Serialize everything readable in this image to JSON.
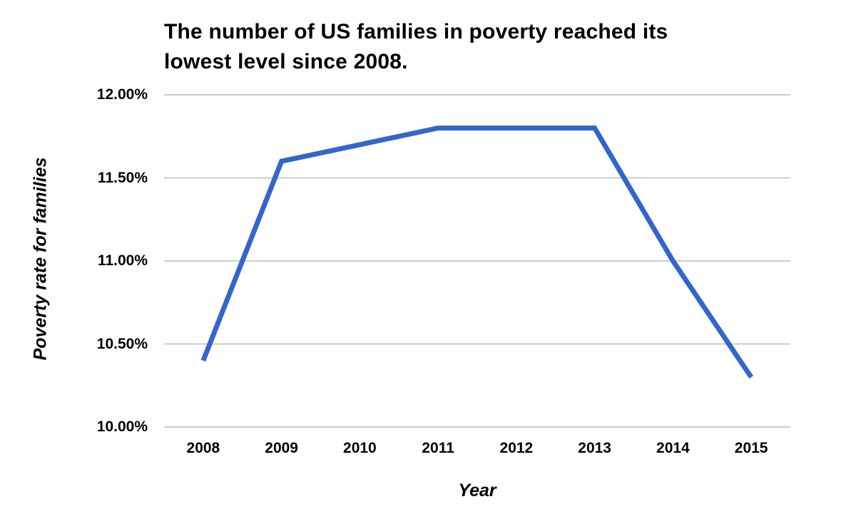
{
  "chart_data": {
    "type": "line",
    "title": "The number of US families in poverty reached its lowest level since 2008.",
    "title_lines": [
      "The number of US families in poverty reached its",
      "lowest level since 2008."
    ],
    "xlabel": "Year",
    "ylabel": "Poverty rate for families",
    "categories": [
      "2008",
      "2009",
      "2010",
      "2011",
      "2012",
      "2013",
      "2014",
      "2015"
    ],
    "series": [
      {
        "name": "Poverty rate for families",
        "values": [
          10.4,
          11.6,
          11.7,
          11.8,
          11.8,
          11.8,
          11.0,
          10.3
        ],
        "unit": "%"
      }
    ],
    "ylim": [
      10.0,
      12.0
    ],
    "y_ticks": [
      {
        "value": 12.0,
        "label": "12.00%"
      },
      {
        "value": 11.5,
        "label": "11.50%"
      },
      {
        "value": 11.0,
        "label": "11.00%"
      },
      {
        "value": 10.5,
        "label": "10.50%"
      },
      {
        "value": 10.0,
        "label": "10.00%"
      }
    ],
    "grid": "horizontal-only",
    "legend": "none",
    "line_color": "#3366CC",
    "gridline_color": "#CCCCCC",
    "background_color": "#FFFFFF",
    "text_color": "#000000"
  }
}
